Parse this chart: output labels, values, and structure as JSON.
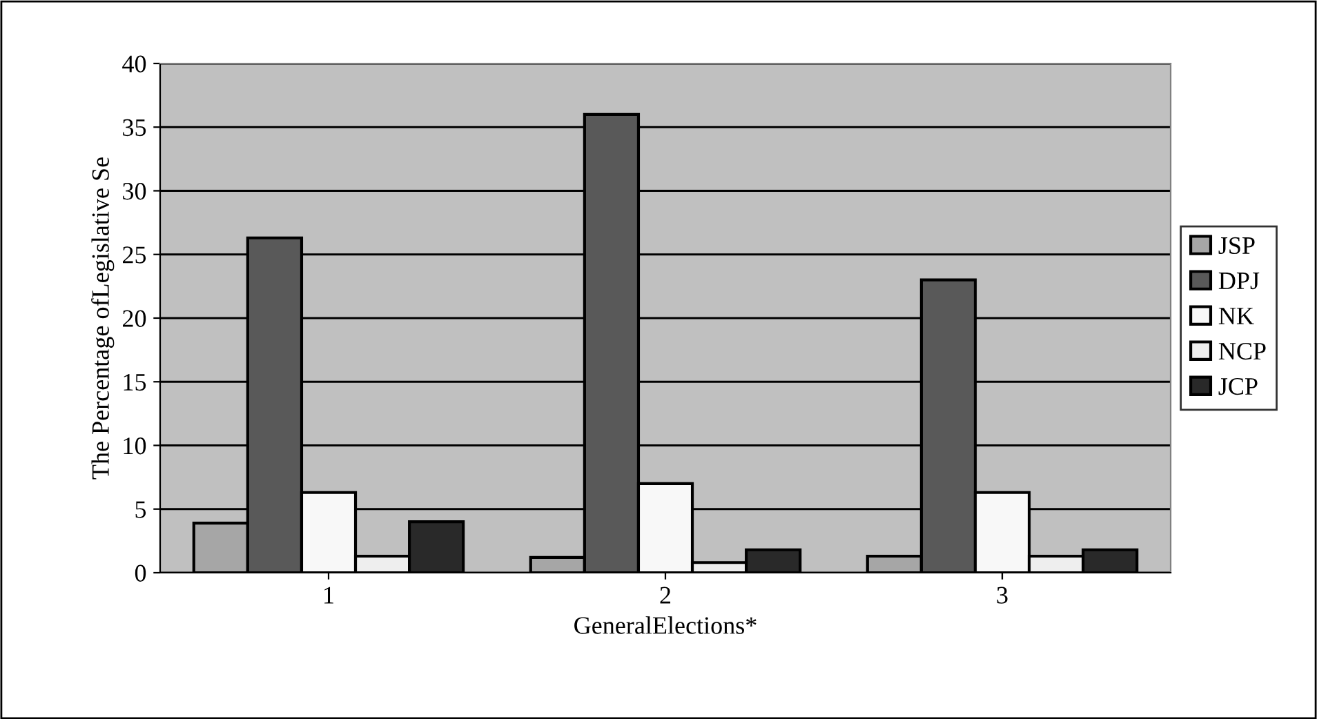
{
  "chart_data": {
    "type": "bar",
    "xlabel": "GeneralElections*",
    "ylabel": "The Percentage ofLegislative Se",
    "categories": [
      "1",
      "2",
      "3"
    ],
    "series": [
      {
        "name": "JSP",
        "color": "#a6a6a6",
        "values": [
          3.9,
          1.2,
          1.3
        ]
      },
      {
        "name": "DPJ",
        "color": "#595959",
        "values": [
          26.3,
          36.0,
          23.0
        ]
      },
      {
        "name": "NK",
        "color": "#f8f8f8",
        "values": [
          6.3,
          7.0,
          6.3
        ]
      },
      {
        "name": "NCP",
        "color": "#eeeeee",
        "values": [
          1.3,
          0.8,
          1.3
        ]
      },
      {
        "name": "JCP",
        "color": "#292929",
        "values": [
          4.0,
          1.8,
          1.8
        ]
      }
    ],
    "ylim": [
      0,
      40
    ],
    "yticks": [
      0,
      5,
      10,
      15,
      20,
      25,
      30,
      35,
      40
    ],
    "grid": "y",
    "legend": "right"
  }
}
